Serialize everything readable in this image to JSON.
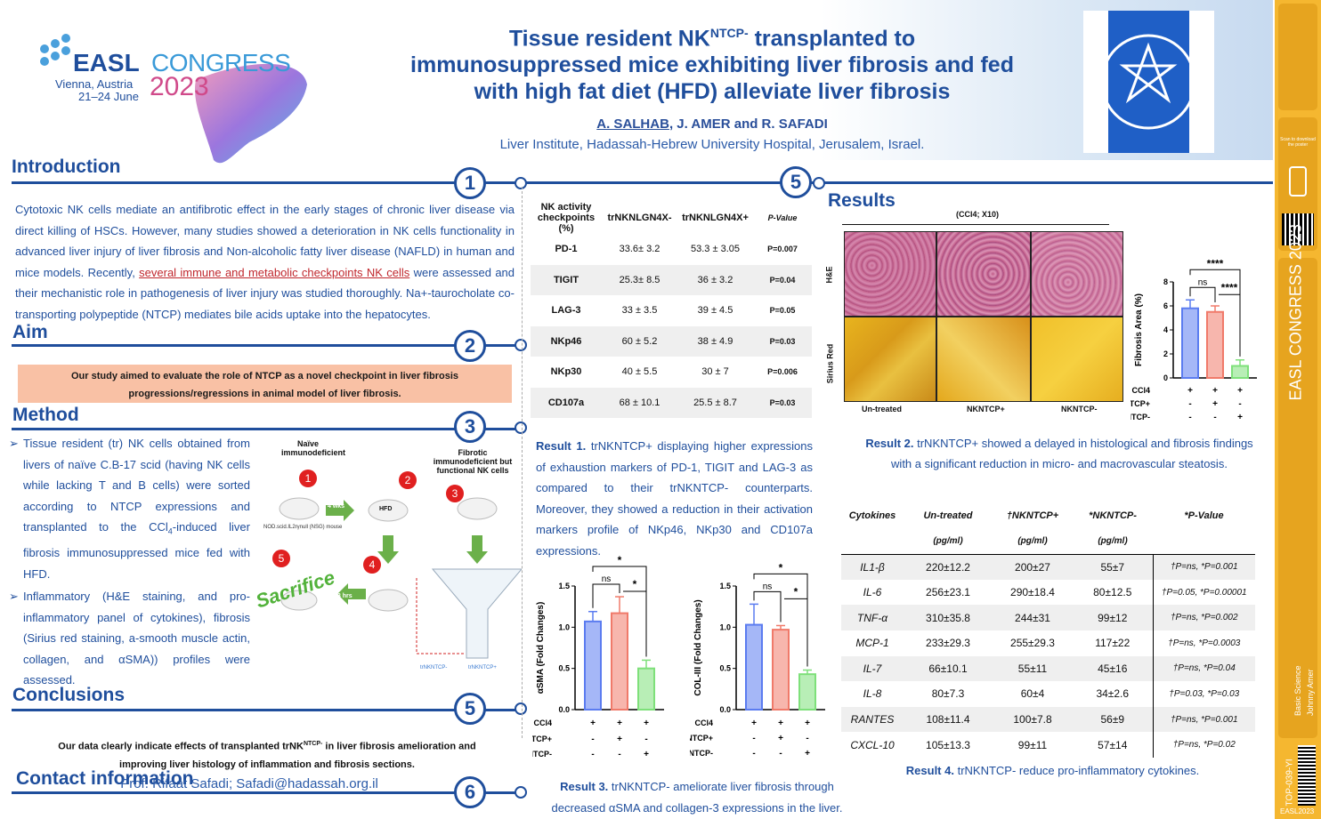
{
  "header": {
    "congress_brand": "EASL",
    "congress_word": "CONGRESS",
    "congress_location": "Vienna, Austria",
    "congress_dates": "21–24 June",
    "congress_year": "2023",
    "title_l1a": "Tissue resident NK",
    "title_l1sup": "NTCP-",
    "title_l1b": " transplanted to",
    "title_l2": "immunosuppressed mice exhibiting liver fibrosis and fed",
    "title_l3": "with high fat diet (HFD) alleviate liver fibrosis",
    "author_main": "A. SALHAB",
    "authors_rest": ", J. AMER and R. SAFADI",
    "affiliation": "Liver Institute, Hadassah-Hebrew University Hospital, Jerusalem, Israel."
  },
  "sections": {
    "introduction": {
      "title": "Introduction",
      "num": "1",
      "t1": "Cytotoxic NK cells mediate an antifibrotic effect in the early stages of chronic liver disease via direct killing of HSCs. However, many studies showed a deterioration in NK cells functionality in advanced liver injury of liver fibrosis and Non-alcoholic fatty liver disease (NAFLD) in human and mice models. Recently, ",
      "link": "several immune and metabolic checkpoints NK cells",
      "t2": " were assessed and their mechanistic role in pathogenesis of liver injury was studied thoroughly. Na+-taurocholate co-transporting polypeptide (NTCP) mediates bile acids uptake into the hepatocytes."
    },
    "aim": {
      "title": "Aim",
      "num": "2",
      "text": "Our study aimed to evaluate the role of NTCP as a novel checkpoint in liver fibrosis progressions/regressions in animal model of liver fibrosis."
    },
    "method": {
      "title": "Method",
      "num": "3",
      "b1a": "Tissue resident (tr) NK cells obtained from livers of naïve C.B-17 scid (having NK cells while lacking T and B cells) were sorted according to NTCP expressions and transplanted to the CCl",
      "b1sub": "4",
      "b1b": "-induced liver fibrosis immunosuppressed mice fed with HFD.",
      "b2": "Inflammatory (H&E staining, and pro-inflammatory panel of cytokines), fibrosis (Sirius red staining, a-smooth muscle actin, collagen, and αSMA)) profiles were assessed.",
      "diagram": {
        "naive": "Naïve immunodeficient",
        "fibrotic": "Fibrotic immunodeficient but functional NK cells",
        "wks": "4 wks",
        "hfd": "HFD",
        "hrs": "48 hrs",
        "mouse_label": "NOD.scid.IL2rγnull (NSG) mouse",
        "sacrifice": "Sacrifice",
        "steps": [
          "1",
          "2",
          "3",
          "4",
          "5"
        ],
        "tr_pos": "trNKNTCP+",
        "tr_neg": "trNKNTCP-"
      }
    },
    "conclusions": {
      "title": "Conclusions",
      "num": "5",
      "t1": "Our data clearly indicate effects of transplanted trNK",
      "sup": "NTCP-",
      "t2": " in liver fibrosis amelioration and improving liver histology of inflammation and fibrosis sections."
    },
    "contact": {
      "title": "Contact information",
      "num": "6",
      "text": "Prof. Rifaat Safadi; Safadi@hadassah.org.il"
    },
    "results": {
      "title": "Results",
      "num": "5"
    }
  },
  "nk_table": {
    "headers": [
      "NK activity checkpoints (%)",
      "trNKNLGN4X-",
      "trNKNLGN4X+",
      "P-Value"
    ],
    "rows": [
      [
        "PD-1",
        "33.6± 3.2",
        "53.3 ± 3.05",
        "P=0.007"
      ],
      [
        "TIGIT",
        "25.3± 8.5",
        "36 ± 3.2",
        "P=0.04"
      ],
      [
        "LAG-3",
        "33 ± 3.5",
        "39 ± 4.5",
        "P=0.05"
      ],
      [
        "NKp46",
        "60 ± 5.2",
        "38 ± 4.9",
        "P=0.03"
      ],
      [
        "NKp30",
        "40 ± 5.5",
        "30 ± 7",
        "P=0.006"
      ],
      [
        "CD107a",
        "68 ± 10.1",
        "25.5 ± 8.7",
        "P=0.03"
      ]
    ]
  },
  "result1": {
    "label": "Result 1.",
    "text": " trNKNTCP+ displaying higher expressions of exhaustion markers of PD-1, TIGIT and LAG-3 as compared to their trNKNTCP- counterparts. Moreover, they showed a reduction in their activation markers profile of NKp46, NKp30 and CD107a expressions."
  },
  "result2": {
    "label": "Result 2.",
    "text": " trNKNTCP+ showed a delayed in histological and fibrosis findings with a significant reduction in micro- and macrovascular steatosis."
  },
  "result3": {
    "label": "Result 3.",
    "text": " trNKNTCP- ameliorate liver fibrosis through decreased αSMA and collagen-3 expressions in the liver."
  },
  "result4": {
    "label": "Result 4.",
    "text": " trNKNTCP- reduce  pro-inflammatory  cytokines."
  },
  "histology": {
    "magnification": "(CCl4; X10)",
    "rows": [
      "H&E",
      "Sirius Red"
    ],
    "cols": [
      "Un-treated",
      "NKNTCP+",
      "NKNTCP-"
    ]
  },
  "chart_data": [
    {
      "type": "bar",
      "ylabel": "Fibrosis Area (%)",
      "ylim": [
        0,
        8
      ],
      "yticks": [
        "0",
        "2",
        "4",
        "6",
        "8"
      ],
      "values": [
        5.8,
        5.5,
        1.0
      ],
      "errors": [
        0.7,
        0.5,
        0.5
      ],
      "colors": [
        "#5b7cf0",
        "#f07a6a",
        "#7ee07a"
      ],
      "rows": [
        {
          "label": "CCl4",
          "marks": [
            "+",
            "+",
            "+"
          ]
        },
        {
          "label": "NKNTCP+",
          "marks": [
            "-",
            "+",
            "-"
          ]
        },
        {
          "label": "NKNTCP-",
          "marks": [
            "-",
            "-",
            "+"
          ]
        }
      ],
      "annotations": [
        "ns",
        "****",
        "****"
      ]
    },
    {
      "type": "bar",
      "ylabel": "αSMA (Fold Changes)",
      "ylim": [
        0,
        1.5
      ],
      "yticks": [
        "0.0",
        "0.5",
        "1.0",
        "1.5"
      ],
      "values": [
        1.07,
        1.17,
        0.5
      ],
      "errors": [
        0.12,
        0.2,
        0.1
      ],
      "colors": [
        "#5b7cf0",
        "#f07a6a",
        "#7ee07a"
      ],
      "rows": [
        {
          "label": "CCl4",
          "marks": [
            "+",
            "+",
            "+"
          ]
        },
        {
          "label": "NKNTCP+",
          "marks": [
            "-",
            "+",
            "-"
          ]
        },
        {
          "label": "NKNTCP-",
          "marks": [
            "-",
            "-",
            "+"
          ]
        }
      ],
      "annotations": [
        "ns",
        "*",
        "*"
      ]
    },
    {
      "type": "bar",
      "ylabel": "COL-III (Fold Changes)",
      "ylim": [
        0,
        1.5
      ],
      "yticks": [
        "0.0",
        "0.5",
        "1.0",
        "1.5"
      ],
      "values": [
        1.03,
        0.97,
        0.43
      ],
      "errors": [
        0.25,
        0.05,
        0.05
      ],
      "colors": [
        "#5b7cf0",
        "#f07a6a",
        "#7ee07a"
      ],
      "rows": [
        {
          "label": "CCl4",
          "marks": [
            "+",
            "+",
            "+"
          ]
        },
        {
          "label": "NKNTCP+",
          "marks": [
            "-",
            "+",
            "-"
          ]
        },
        {
          "label": "NKNTCP-",
          "marks": [
            "-",
            "-",
            "+"
          ]
        }
      ],
      "annotations": [
        "ns",
        "*",
        "*"
      ]
    }
  ],
  "cytokine_table": {
    "headers": [
      "Cytokines",
      "Un-treated",
      "†NKNTCP+",
      "*NKNTCP-",
      "*P-Value"
    ],
    "units": [
      "",
      "(pg/ml)",
      "(pg/ml)",
      "(pg/ml)",
      ""
    ],
    "rows": [
      [
        "IL1-β",
        "220±12.2",
        "200±27",
        "55±7",
        "†P=ns, *P=0.001"
      ],
      [
        "IL-6",
        "256±23.1",
        "290±18.4",
        "80±12.5",
        "†P=0.05, *P=0.00001"
      ],
      [
        "TNF-α",
        "310±35.8",
        "244±31",
        "99±12",
        "†P=ns, *P=0.002"
      ],
      [
        "MCP-1",
        "233±29.3",
        "255±29.3",
        "117±22",
        "†P=ns, *P=0.0003"
      ],
      [
        "IL-7",
        "66±10.1",
        "55±11",
        "45±16",
        "†P=ns, *P=0.04"
      ],
      [
        "IL-8",
        "80±7.3",
        "60±4",
        "34±2.6",
        "†P=0.03, *P=0.03"
      ],
      [
        "RANTES",
        "108±11.4",
        "100±7.8",
        "56±9",
        "†P=ns, *P=0.001"
      ],
      [
        "CXCL-10",
        "105±13.3",
        "99±11",
        "57±14",
        "†P=ns, *P=0.02"
      ]
    ]
  },
  "sidebar": {
    "scan": "Scan to download the poster",
    "congress": "EASL CONGRESS 2023",
    "topic": "Basic Science",
    "author": "Johnny Amer",
    "code": "TOP-039-YI",
    "footer": "EASL2023"
  },
  "colors": {
    "brand": "#1f4e9c",
    "sidebar": "#f5b730",
    "aim_box": "#f9c1a5"
  }
}
